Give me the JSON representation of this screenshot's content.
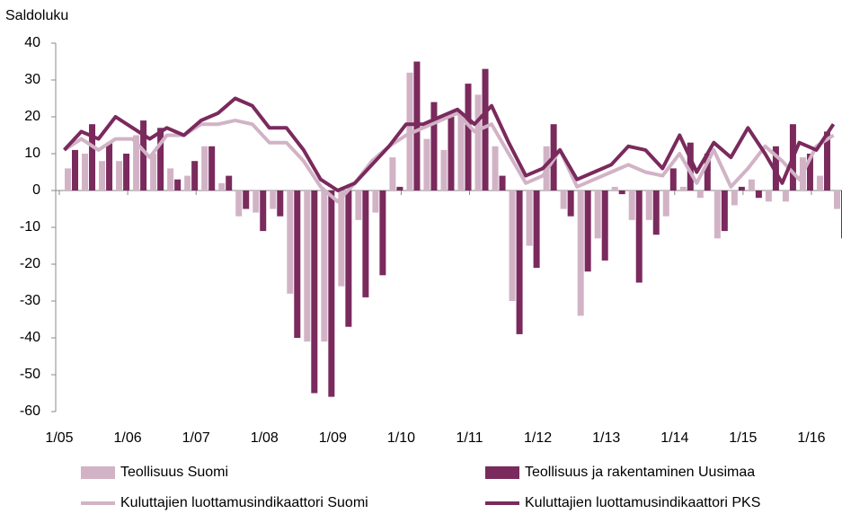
{
  "chart_data": {
    "type": "bar",
    "y_label": "Saldoluku",
    "categories": [
      "1/05",
      null,
      null,
      null,
      "1/06",
      null,
      null,
      null,
      "1/07",
      null,
      null,
      null,
      "1/08",
      null,
      null,
      null,
      "1/09",
      null,
      null,
      null,
      "1/10",
      null,
      null,
      null,
      "1/11",
      null,
      null,
      null,
      "1/12",
      null,
      null,
      null,
      "1/13",
      null,
      null,
      null,
      "1/14",
      null,
      null,
      null,
      "1/15",
      null,
      null,
      null,
      "1/16",
      null
    ],
    "series": [
      {
        "name": "Teollisuus Suomi",
        "type": "bar",
        "color": "#d2b3c6",
        "values": [
          6,
          10,
          8,
          8,
          15,
          10,
          6,
          4,
          12,
          2,
          -7,
          -6,
          -5,
          -28,
          -41,
          -41,
          -26,
          -8,
          -6,
          9,
          32,
          14,
          11,
          21,
          26,
          12,
          -30,
          -15,
          12,
          -5,
          -34,
          -13,
          1,
          -8,
          -8,
          -7,
          1,
          -2,
          -13,
          -4,
          3,
          -3,
          -3,
          9,
          4,
          -5
        ]
      },
      {
        "name": "Teollisuus ja rakentaminen Uusimaa",
        "type": "bar",
        "color": "#7a2a5d",
        "values": [
          11,
          18,
          13,
          10,
          19,
          17,
          3,
          8,
          12,
          4,
          -5,
          -11,
          -7,
          -40,
          -55,
          -56,
          -37,
          -29,
          -23,
          1,
          35,
          24,
          20,
          29,
          33,
          4,
          -39,
          -21,
          18,
          -7,
          -22,
          -19,
          -1,
          -25,
          -12,
          6,
          13,
          10,
          -11,
          1,
          -2,
          12,
          18,
          10,
          16,
          -13
        ]
      },
      {
        "name": "Kuluttajien luottamusindikaattori Suomi",
        "type": "line",
        "color": "#d2b3c6",
        "values": [
          11,
          14,
          11,
          14,
          14,
          9,
          15,
          15,
          18,
          18,
          19,
          18,
          13,
          13,
          8,
          1,
          -3,
          2,
          8,
          12,
          15,
          17,
          19,
          21,
          16,
          18,
          10,
          2,
          4,
          11,
          1,
          3,
          5,
          7,
          5,
          4,
          10,
          2,
          11,
          1,
          6,
          12,
          8,
          3,
          12,
          15
        ]
      },
      {
        "name": "Kuluttajien luottamusindikaattori PKS",
        "type": "line",
        "color": "#7a2a5d",
        "values": [
          11,
          16,
          14,
          20,
          17,
          14,
          17,
          15,
          19,
          21,
          25,
          23,
          17,
          17,
          11,
          3,
          0,
          2,
          7,
          12,
          18,
          18,
          20,
          22,
          18,
          23,
          13,
          4,
          6,
          11,
          3,
          5,
          7,
          12,
          11,
          6,
          15,
          5,
          13,
          9,
          17,
          10,
          2,
          13,
          11,
          18
        ]
      }
    ],
    "ylim": [
      -60,
      40
    ],
    "yticks": [
      -60,
      -50,
      -40,
      -30,
      -20,
      -10,
      0,
      10,
      20,
      30,
      40
    ]
  }
}
